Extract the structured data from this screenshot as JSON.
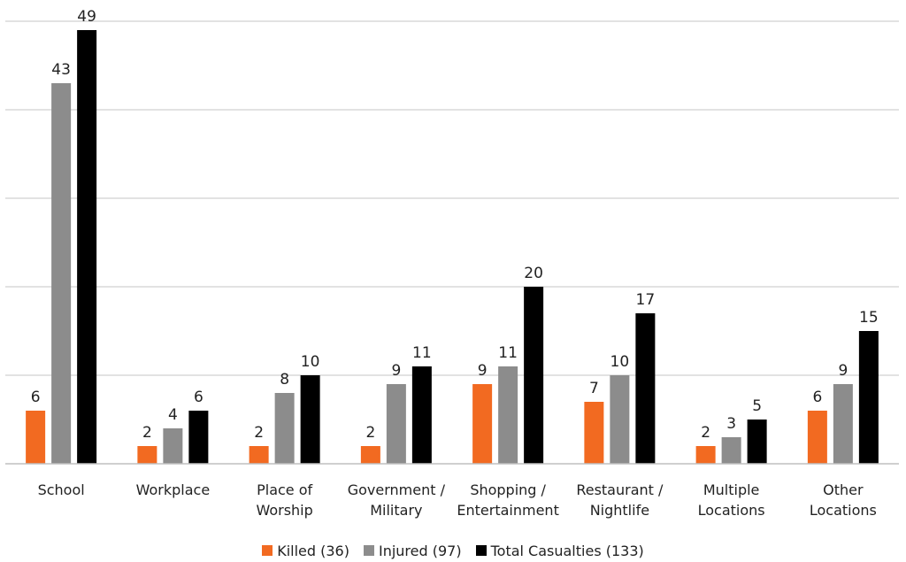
{
  "chart_data": {
    "type": "bar",
    "categories": [
      [
        "School"
      ],
      [
        "Workplace"
      ],
      [
        "Place of",
        "Worship"
      ],
      [
        "Government /",
        "Military"
      ],
      [
        "Shopping /",
        "Entertainment"
      ],
      [
        "Restaurant /",
        "Nightlife"
      ],
      [
        "Multiple",
        "Locations"
      ],
      [
        "Other",
        "Locations"
      ]
    ],
    "series": [
      {
        "name": "Killed (36)",
        "color": "#f26a21",
        "values": [
          6,
          2,
          2,
          2,
          9,
          7,
          2,
          6
        ]
      },
      {
        "name": "Injured (97)",
        "color": "#8c8c8c",
        "values": [
          43,
          4,
          8,
          9,
          11,
          10,
          3,
          9
        ]
      },
      {
        "name": "Total Casualties (133)",
        "color": "#000000",
        "values": [
          49,
          6,
          10,
          11,
          20,
          17,
          5,
          15
        ]
      }
    ],
    "ylim": [
      0,
      50
    ],
    "grid": true,
    "gridline_step": 10,
    "data_labels": true,
    "legend_position": "bottom",
    "title": "",
    "xlabel": "",
    "ylabel": ""
  }
}
